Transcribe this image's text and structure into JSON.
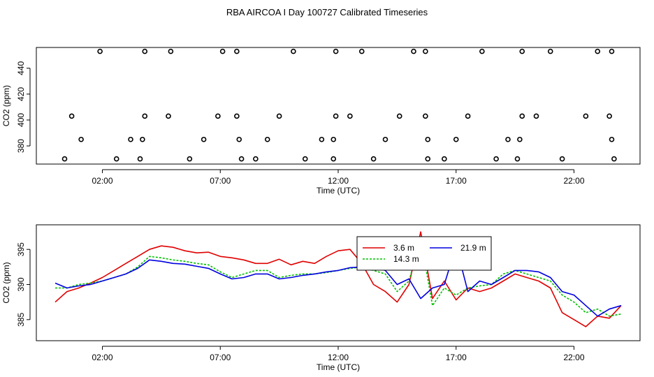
{
  "title": "RBA AIRCOA I  Day 100727  Calibrated Timeseries",
  "chart_data": [
    {
      "type": "line",
      "xlabel": "Time (UTC)",
      "ylabel": "CO2 (ppm)",
      "xlim": [
        -0.8,
        24.8
      ],
      "ylim": [
        366,
        456
      ],
      "xticks": [
        2,
        7,
        12,
        17,
        22
      ],
      "xtick_labels": [
        "02:00",
        "07:00",
        "12:00",
        "17:00",
        "22:00"
      ],
      "yticks": [
        380,
        400,
        420,
        440
      ],
      "yticks_labels": [
        "380",
        "400",
        "420",
        "440"
      ],
      "flag_points": [
        [
          0.4,
          370
        ],
        [
          1.1,
          385
        ],
        [
          0.7,
          403
        ],
        [
          1.9,
          453
        ],
        [
          2.6,
          370
        ],
        [
          3.2,
          385
        ],
        [
          3.6,
          370
        ],
        [
          3.7,
          385
        ],
        [
          3.8,
          403
        ],
        [
          3.8,
          453
        ],
        [
          4.8,
          403
        ],
        [
          4.9,
          453
        ],
        [
          5.7,
          370
        ],
        [
          6.3,
          385
        ],
        [
          6.9,
          403
        ],
        [
          7.1,
          453
        ],
        [
          7.7,
          453
        ],
        [
          7.7,
          403
        ],
        [
          7.8,
          385
        ],
        [
          7.9,
          370
        ],
        [
          8.5,
          370
        ],
        [
          9.0,
          385
        ],
        [
          9.5,
          403
        ],
        [
          10.1,
          453
        ],
        [
          10.6,
          370
        ],
        [
          11.3,
          385
        ],
        [
          11.8,
          385
        ],
        [
          11.8,
          370
        ],
        [
          11.9,
          403
        ],
        [
          11.9,
          453
        ],
        [
          12.5,
          403
        ],
        [
          13.0,
          453
        ],
        [
          13.5,
          370
        ],
        [
          14.0,
          385
        ],
        [
          14.6,
          403
        ],
        [
          15.2,
          453
        ],
        [
          15.7,
          453
        ],
        [
          15.7,
          403
        ],
        [
          15.8,
          385
        ],
        [
          15.8,
          370
        ],
        [
          16.5,
          370
        ],
        [
          17.0,
          385
        ],
        [
          17.5,
          403
        ],
        [
          18.1,
          453
        ],
        [
          18.7,
          370
        ],
        [
          19.2,
          385
        ],
        [
          19.6,
          370
        ],
        [
          19.7,
          385
        ],
        [
          19.8,
          403
        ],
        [
          19.8,
          453
        ],
        [
          20.4,
          403
        ],
        [
          21.0,
          453
        ],
        [
          21.5,
          370
        ],
        [
          22.5,
          403
        ],
        [
          23.0,
          453
        ],
        [
          23.5,
          403
        ],
        [
          23.6,
          453
        ],
        [
          23.6,
          385
        ],
        [
          23.7,
          370
        ]
      ]
    },
    {
      "type": "line",
      "xlabel": "Time (UTC)",
      "ylabel": "CO2 (ppm)",
      "xlim": [
        -0.8,
        24.8
      ],
      "ylim": [
        382.0,
        398.5
      ],
      "xticks": [
        2,
        7,
        12,
        17,
        22
      ],
      "xtick_labels": [
        "02:00",
        "07:00",
        "12:00",
        "17:00",
        "22:00"
      ],
      "yticks": [
        385,
        390,
        395
      ],
      "yticks_labels": [
        "385",
        "390",
        "395"
      ],
      "legend_position": "top-center",
      "x": [
        0.0,
        0.5,
        1.0,
        1.5,
        2.0,
        2.5,
        3.0,
        3.5,
        4.0,
        4.5,
        5.0,
        5.5,
        6.0,
        6.5,
        7.0,
        7.5,
        8.0,
        8.5,
        9.0,
        9.5,
        10.0,
        10.5,
        11.0,
        11.5,
        12.0,
        12.5,
        13.0,
        13.5,
        14.0,
        14.5,
        15.0,
        15.5,
        16.0,
        16.5,
        17.0,
        17.5,
        18.0,
        18.5,
        19.0,
        19.5,
        20.0,
        20.5,
        21.0,
        21.5,
        22.0,
        22.5,
        23.0,
        23.5,
        24.0
      ],
      "series": [
        {
          "name": "3.6 m",
          "color": "#e00000",
          "dash": "",
          "values": [
            387.5,
            389.0,
            389.5,
            390.2,
            391.0,
            392.0,
            393.0,
            394.0,
            395.0,
            395.5,
            395.3,
            394.8,
            394.5,
            394.6,
            394.0,
            393.8,
            393.5,
            393.0,
            393.0,
            393.6,
            392.8,
            393.3,
            393.0,
            394.0,
            394.8,
            395.0,
            393.0,
            390.0,
            389.0,
            387.5,
            390.0,
            397.5,
            388.0,
            390.5,
            387.8,
            389.5,
            389.0,
            389.5,
            390.5,
            391.5,
            391.0,
            390.5,
            389.5,
            386.0,
            385.0,
            384.0,
            385.5,
            385.2,
            387.0
          ]
        },
        {
          "name": "14.3 m",
          "color": "#00c000",
          "dash": "3,2",
          "values": [
            389.5,
            389.5,
            390.0,
            390.2,
            390.5,
            391.0,
            391.5,
            392.5,
            394.0,
            393.8,
            393.5,
            393.3,
            393.0,
            392.8,
            391.8,
            391.0,
            391.5,
            392.0,
            392.0,
            391.0,
            391.3,
            391.5,
            391.5,
            391.7,
            392.0,
            392.3,
            392.5,
            392.0,
            391.5,
            389.0,
            390.5,
            396.5,
            387.0,
            389.5,
            388.5,
            389.5,
            389.8,
            390.0,
            391.5,
            392.0,
            391.5,
            391.0,
            390.5,
            388.5,
            387.5,
            386.0,
            386.5,
            385.5,
            385.8
          ]
        },
        {
          "name": "21.9 m",
          "color": "#0000e0",
          "dash": "",
          "values": [
            390.2,
            389.5,
            389.8,
            390.0,
            390.5,
            391.0,
            391.5,
            392.3,
            393.5,
            393.3,
            393.0,
            392.9,
            392.6,
            392.3,
            391.5,
            390.8,
            391.0,
            391.5,
            391.5,
            390.8,
            391.0,
            391.3,
            391.5,
            391.8,
            392.0,
            392.4,
            392.5,
            392.4,
            392.0,
            390.0,
            390.8,
            388.0,
            389.5,
            390.0,
            395.5,
            389.0,
            390.5,
            390.0,
            391.0,
            392.0,
            392.0,
            391.8,
            391.0,
            389.0,
            388.5,
            387.0,
            385.5,
            386.5,
            387.0
          ]
        }
      ]
    }
  ]
}
